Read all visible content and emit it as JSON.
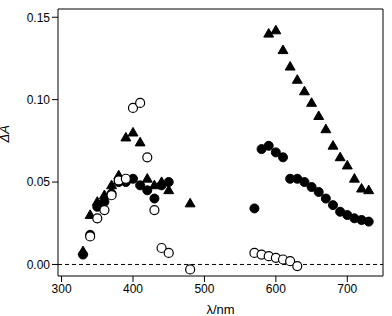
{
  "chart_data": {
    "type": "scatter",
    "x_label": "λ/nm",
    "y_label": "ΔA",
    "xlim": [
      295,
      750
    ],
    "xticks": [
      300,
      400,
      500,
      600,
      700
    ],
    "ylim": [
      -0.007,
      0.155
    ],
    "yticks": [
      {
        "value": 0,
        "label": "0.00"
      },
      {
        "value": 0.05,
        "label": "0.05"
      },
      {
        "value": 0.1,
        "label": "0.10"
      },
      {
        "value": 0.15,
        "label": "0.15"
      }
    ],
    "reference_lines": [
      {
        "y": 0,
        "line_style": "dashed"
      }
    ],
    "series": [
      {
        "color": "#000000",
        "marker": "triangle",
        "x": [
          330,
          340,
          350,
          360,
          370,
          380,
          390,
          400,
          410,
          420,
          430,
          440,
          450,
          480,
          590,
          600,
          610,
          620,
          630,
          640,
          650,
          660,
          670,
          680,
          690,
          700,
          710,
          720,
          730
        ],
        "values": [
          0.008,
          0.03,
          0.038,
          0.042,
          0.048,
          0.054,
          0.077,
          0.08,
          0.074,
          0.052,
          0.048,
          0.05,
          0.045,
          0.037,
          0.14,
          0.142,
          0.13,
          0.12,
          0.112,
          0.105,
          0.098,
          0.09,
          0.082,
          0.072,
          0.065,
          0.06,
          0.052,
          0.046,
          0.045
        ]
      },
      {
        "color": "#000000",
        "marker": "circle",
        "x": [
          330,
          340,
          350,
          360,
          370,
          380,
          390,
          400,
          410,
          420,
          430,
          440,
          450,
          570,
          580,
          590,
          600,
          610,
          620,
          630,
          640,
          650,
          660,
          670,
          680,
          690,
          700,
          710,
          720,
          730
        ],
        "values": [
          0.006,
          0.018,
          0.035,
          0.038,
          0.043,
          0.05,
          0.05,
          0.052,
          0.048,
          0.045,
          0.04,
          0.048,
          0.05,
          0.034,
          0.07,
          0.072,
          0.068,
          0.065,
          0.052,
          0.052,
          0.05,
          0.047,
          0.044,
          0.04,
          0.036,
          0.032,
          0.03,
          0.028,
          0.027,
          0.026
        ]
      },
      {
        "color": "#000000",
        "marker": "circle_open",
        "x": [
          340,
          350,
          360,
          370,
          380,
          390,
          400,
          410,
          420,
          430,
          440,
          450,
          480,
          570,
          580,
          590,
          600,
          610,
          620,
          630
        ],
        "values": [
          0.017,
          0.028,
          0.033,
          0.042,
          0.051,
          0.052,
          0.095,
          0.098,
          0.065,
          0.033,
          0.01,
          0.007,
          -0.003,
          0.007,
          0.006,
          0.005,
          0.004,
          0.003,
          0.002,
          -0.001
        ]
      }
    ]
  }
}
